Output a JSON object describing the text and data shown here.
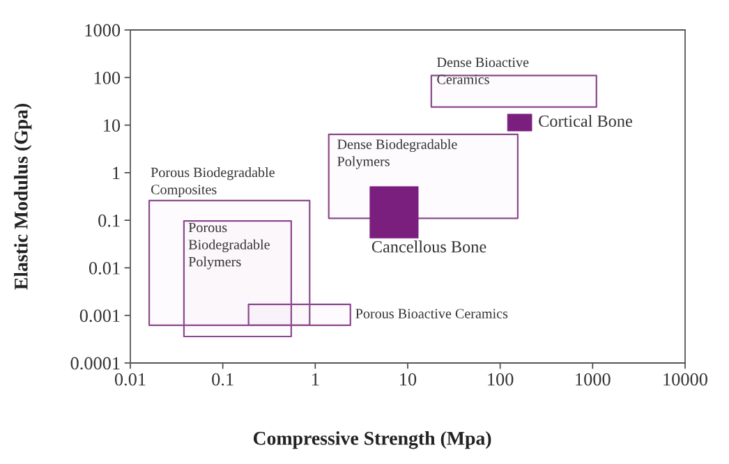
{
  "chart_data": {
    "type": "line",
    "xlabel": "Compressive Strength (Mpa)",
    "ylabel": "Elastic Modulus (Gpa)",
    "log": "xy",
    "xlim": [
      0.01,
      10000
    ],
    "ylim": [
      0.0001,
      1000
    ],
    "xticks": [
      0.01,
      0.1,
      1,
      10,
      100,
      1000,
      10000
    ],
    "yticks": [
      0.0001,
      0.001,
      0.01,
      0.1,
      1,
      10,
      100,
      1000
    ],
    "grid": false,
    "legend": false,
    "series": [
      {
        "name": "Dense Bioactive\nCeramics",
        "x": [
          18,
          1100
        ],
        "values": [
          null,
          null
        ],
        "lower": [
          24,
          24
        ],
        "upper": [
          110,
          110
        ]
      },
      {
        "name": "Cortical Bone",
        "x": [
          120,
          220
        ],
        "values": [
          null,
          null
        ],
        "lower": [
          7.5,
          7.5
        ],
        "upper": [
          17,
          17
        ]
      },
      {
        "name": "Dense Biodegradable\nPolymers",
        "x": [
          1.4,
          155
        ],
        "values": [
          null,
          null
        ],
        "lower": [
          0.11,
          0.11
        ],
        "upper": [
          6.4,
          6.4
        ]
      },
      {
        "name": "Cancellous Bone",
        "x": [
          3.9,
          13
        ],
        "values": [
          null,
          null
        ],
        "lower": [
          0.042,
          0.042
        ],
        "upper": [
          0.51,
          0.51
        ]
      },
      {
        "name": "Porous Biodegradable\nComposites",
        "x": [
          0.016,
          0.87
        ],
        "values": [
          null,
          null
        ],
        "lower": [
          0.00062,
          0.00062
        ],
        "upper": [
          0.26,
          0.26
        ]
      },
      {
        "name": "Porous\nBiodegradable\nPolymers",
        "x": [
          0.038,
          0.55
        ],
        "values": [
          null,
          null
        ],
        "lower": [
          0.00036,
          0.00036
        ],
        "upper": [
          0.097,
          0.097
        ]
      },
      {
        "name": "Porous Bioactive Ceramics",
        "x": [
          0.19,
          2.4
        ],
        "values": [
          null,
          null
        ],
        "lower": [
          0.00062,
          0.00062
        ],
        "upper": [
          0.0017,
          0.0017
        ]
      }
    ]
  }
}
